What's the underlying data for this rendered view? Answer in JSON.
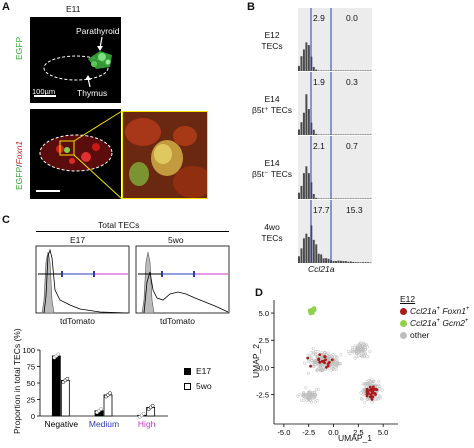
{
  "panel_a": {
    "letter": "A",
    "stage": "E11",
    "label_top": "EGFP",
    "label_bottom_egfp": "EGFP",
    "label_bottom_slash": "/",
    "label_bottom_foxn1": "Foxn1",
    "parathyroid": "Parathyroid",
    "thymus": "Thymus",
    "scale": "100µm"
  },
  "panel_b": {
    "letter": "B",
    "xlabel": "Ccl21a",
    "rows": [
      {
        "line1": "E12",
        "line2": "TECs",
        "left_pct": "2.9",
        "right_pct": "0.0"
      },
      {
        "line1": "E14",
        "line2": "β5t⁺ TECs",
        "left_pct": "1.9",
        "right_pct": "0.3"
      },
      {
        "line1": "E14",
        "line2": "β5t⁻ TECs",
        "left_pct": "2.1",
        "right_pct": "0.7"
      },
      {
        "line1": "4wo",
        "line2": "TECs",
        "left_pct": "17.7",
        "right_pct": "15.3"
      }
    ]
  },
  "panel_c": {
    "letter": "C",
    "header": "Total TECs",
    "hist_left_title": "E17",
    "hist_right_title": "5wo",
    "hist_xlabel": "tdTomato",
    "legend_e17": "E17",
    "legend_5wo": "5wo",
    "colors": {
      "negative": "#000000",
      "medium": "#2a3bb8",
      "high": "#cc33cc"
    }
  },
  "panel_d": {
    "letter": "D",
    "legend_title": "E12",
    "legend_items": [
      {
        "prefix": "Ccl21a",
        "sup1": "+",
        "mid": " Foxn1",
        "sup2": "+",
        "color": "#aa1a1a"
      },
      {
        "prefix": "Ccl21a",
        "sup1": "+",
        "mid": " Gcm2",
        "sup2": "+",
        "color": "#8fd24a"
      },
      {
        "prefix": "other",
        "sup1": "",
        "mid": "",
        "sup2": "",
        "color": "#bdbdbd"
      }
    ]
  },
  "chart_data": [
    {
      "type": "bar",
      "ylabel": "Proportion in total TECs (%)",
      "categories": [
        "Negative",
        "Medium",
        "High"
      ],
      "category_colors": [
        "#000000",
        "#2a3bb8",
        "#cc33cc"
      ],
      "ylim": [
        0,
        100
      ],
      "yticks": [
        0,
        25,
        50,
        75,
        100
      ],
      "series": [
        {
          "name": "E17",
          "values": [
            91,
            8,
            1
          ]
        },
        {
          "name": "5wo",
          "values": [
            54,
            32,
            13
          ]
        }
      ]
    },
    {
      "type": "scatter",
      "xlabel": "UMAP_1",
      "ylabel": "UMAP_2",
      "xlim": [
        -6,
        6.5
      ],
      "ylim": [
        -5.2,
        6.2
      ],
      "xticks": [
        -5.0,
        -2.5,
        0.0,
        2.5,
        5.0
      ],
      "yticks": [
        -2.5,
        0.0,
        2.5,
        5.0
      ],
      "xtick_labels": [
        "-5.0",
        "-2.5",
        "0.0",
        "2.5",
        "5.0"
      ],
      "ytick_labels": [
        "-2.5",
        "0.0",
        "2.5",
        "5.0"
      ]
    }
  ]
}
